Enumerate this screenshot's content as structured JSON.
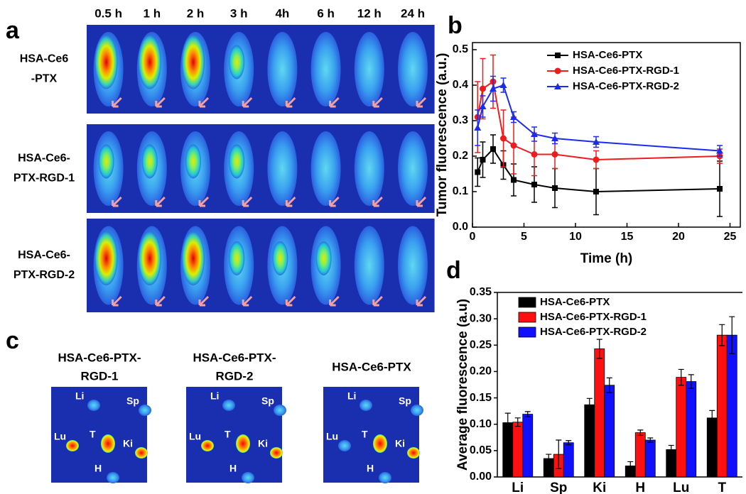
{
  "panel_labels": [
    "a",
    "b",
    "c",
    "d"
  ],
  "panel_a": {
    "times": [
      "0.5 h",
      "1 h",
      "2 h",
      "3 h",
      "4h",
      "6 h",
      "12 h",
      "24 h"
    ],
    "rows": [
      [
        "HSA-Ce6",
        "-PTX"
      ],
      [
        "HSA-Ce6-",
        "PTX-RGD-1"
      ],
      [
        "HSA-Ce6-",
        "PTX-RGD-2"
      ]
    ]
  },
  "panel_c": {
    "groups": [
      [
        "HSA-Ce6-PTX-",
        "RGD-1"
      ],
      [
        "HSA-Ce6-PTX-",
        "RGD-2"
      ],
      [
        "HSA-Ce6-PTX"
      ]
    ],
    "organs": [
      "Li",
      "Sp",
      "Lu",
      "T",
      "Ki",
      "H"
    ]
  },
  "chart_data": [
    {
      "type": "line",
      "x_label": "Time (h)",
      "y_label": "Tumor fluorescence (a.u.)",
      "x": [
        0.5,
        1,
        2,
        3,
        4,
        6,
        8,
        12,
        24
      ],
      "series": [
        {
          "name": "HSA-Ce6-PTX",
          "color": "#000000",
          "marker": "square",
          "values": [
            0.155,
            0.19,
            0.22,
            0.175,
            0.133,
            0.12,
            0.11,
            0.1,
            0.108
          ],
          "errors": [
            0.04,
            0.05,
            0.04,
            0.04,
            0.045,
            0.05,
            0.055,
            0.065,
            0.078
          ]
        },
        {
          "name": "HSA-Ce6-PTX-RGD-1",
          "color": "#ee1c1c",
          "marker": "circle",
          "values": [
            0.31,
            0.39,
            0.41,
            0.25,
            0.23,
            0.205,
            0.205,
            0.19,
            0.2
          ],
          "errors": [
            0.1,
            0.085,
            0.075,
            0.08,
            0.08,
            0.06,
            0.04,
            0.025,
            0.02
          ]
        },
        {
          "name": "HSA-Ce6-PTX-RGD-2",
          "color": "#1c2cee",
          "marker": "triangle",
          "values": [
            0.28,
            0.34,
            0.39,
            0.4,
            0.31,
            0.262,
            0.25,
            0.24,
            0.215
          ],
          "errors": [
            0.05,
            0.03,
            0.035,
            0.02,
            0.015,
            0.02,
            0.015,
            0.015,
            0.015
          ]
        }
      ],
      "xlim": [
        0,
        26
      ],
      "xticks": [
        0,
        5,
        10,
        15,
        20,
        25
      ],
      "ylim": [
        0,
        0.52
      ],
      "yticks": [
        {
          "value": 0,
          "label": "0.0"
        },
        {
          "value": 0.1,
          "label": "0.1"
        },
        {
          "value": 0.2,
          "label": "0.2"
        },
        {
          "value": 0.3,
          "label": "0.3"
        },
        {
          "value": 0.4,
          "label": "0.4"
        },
        {
          "value": 0.5,
          "label": "0.5"
        }
      ],
      "legend": "upper right"
    },
    {
      "type": "bar",
      "y_label": "Average fluorescence (a.u)",
      "categories": [
        "Li",
        "Sp",
        "Ki",
        "H",
        "Lu",
        "T"
      ],
      "series": [
        {
          "name": "HSA-Ce6-PTX",
          "color": "#000000",
          "values": [
            0.103,
            0.035,
            0.137,
            0.021,
            0.052,
            0.112
          ],
          "errors": [
            0.018,
            0.008,
            0.012,
            0.008,
            0.008,
            0.014
          ]
        },
        {
          "name": "HSA-Ce6-PTX-RGD-1",
          "color": "#ff1010",
          "values": [
            0.104,
            0.043,
            0.243,
            0.084,
            0.189,
            0.269
          ],
          "errors": [
            0.008,
            0.027,
            0.018,
            0.005,
            0.015,
            0.02
          ]
        },
        {
          "name": "HSA-Ce6-PTX-RGD-2",
          "color": "#1010ff",
          "values": [
            0.119,
            0.065,
            0.174,
            0.07,
            0.181,
            0.269
          ],
          "errors": [
            0.005,
            0.004,
            0.014,
            0.004,
            0.013,
            0.035
          ]
        }
      ],
      "ylim": [
        0,
        0.35
      ],
      "yticks": [
        {
          "value": 0,
          "label": "0.00"
        },
        {
          "value": 0.05,
          "label": "0.05"
        },
        {
          "value": 0.1,
          "label": "0.10"
        },
        {
          "value": 0.15,
          "label": "0.15"
        },
        {
          "value": 0.2,
          "label": "0.20"
        },
        {
          "value": 0.25,
          "label": "0.25"
        },
        {
          "value": 0.3,
          "label": "0.30"
        },
        {
          "value": 0.35,
          "label": "0.35"
        }
      ],
      "legend": "upper left"
    }
  ]
}
